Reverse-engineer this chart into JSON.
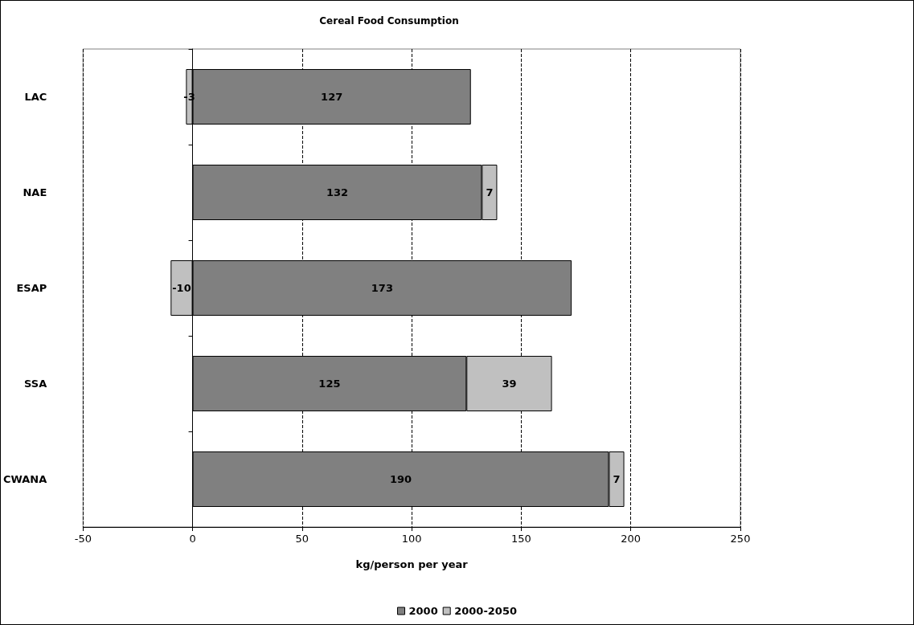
{
  "chart_data": {
    "type": "bar",
    "orientation": "horizontal",
    "stacked": true,
    "title": "Cereal Food Consumption",
    "xlabel": "kg/person per year",
    "categories": [
      "LAC",
      "NAE",
      "ESAP",
      "SSA",
      "CWANA"
    ],
    "series": [
      {
        "name": "2000",
        "color": "#808080",
        "values": [
          127,
          132,
          173,
          125,
          190
        ]
      },
      {
        "name": "2000-2050",
        "color": "#c0c0c0",
        "values": [
          -3,
          7,
          -10,
          39,
          7
        ]
      }
    ],
    "xlim": [
      -50,
      250
    ],
    "xticks": [
      -50,
      0,
      50,
      100,
      150,
      200,
      250
    ],
    "grid": "x",
    "legend": "bottom",
    "data_labels": true
  }
}
